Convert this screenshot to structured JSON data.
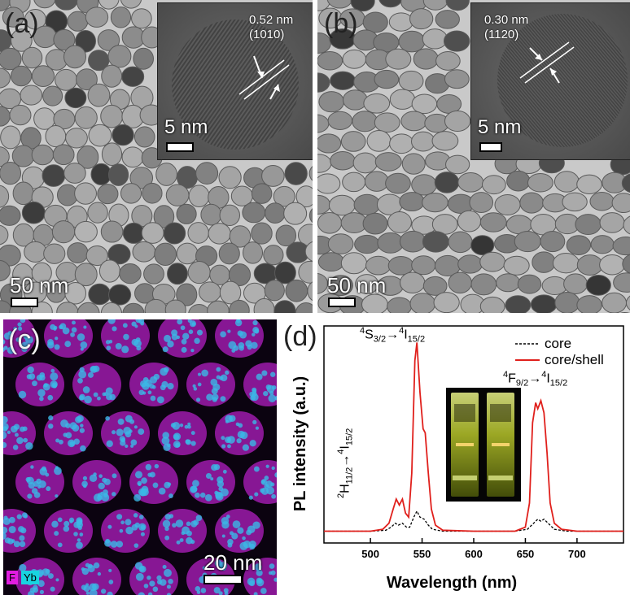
{
  "panels": {
    "a": {
      "label": "(a)",
      "scale": "50 nm",
      "inset": {
        "scale": "5 nm",
        "spacing": "0.52 nm",
        "plane": "(1010)"
      }
    },
    "b": {
      "label": "(b)",
      "scale": "50 nm",
      "inset": {
        "scale": "5 nm",
        "spacing": "0.30 nm",
        "plane": "(1120)"
      }
    },
    "c": {
      "label": "(c)",
      "scale": "20 nm",
      "legend": [
        {
          "label": "F",
          "color": "#e11de0"
        },
        {
          "label": "Yb",
          "color": "#18d4e0"
        }
      ]
    },
    "d": {
      "label": "(d)"
    }
  },
  "chart_data": {
    "type": "line",
    "xlabel": "Wavelength  (nm)",
    "ylabel": "PL intensity  (a.u.)",
    "xlim": [
      455,
      745
    ],
    "xticks": [
      500,
      550,
      600,
      650,
      700
    ],
    "series": [
      {
        "name": "core",
        "style": "dashed",
        "color": "#000000",
        "points": [
          [
            455,
            0.01
          ],
          [
            500,
            0.01
          ],
          [
            515,
            0.015
          ],
          [
            520,
            0.03
          ],
          [
            524,
            0.05
          ],
          [
            527,
            0.04
          ],
          [
            531,
            0.05
          ],
          [
            535,
            0.03
          ],
          [
            538,
            0.03
          ],
          [
            542,
            0.08
          ],
          [
            545,
            0.11
          ],
          [
            548,
            0.08
          ],
          [
            552,
            0.07
          ],
          [
            556,
            0.04
          ],
          [
            560,
            0.02
          ],
          [
            570,
            0.01
          ],
          [
            600,
            0.01
          ],
          [
            640,
            0.01
          ],
          [
            652,
            0.02
          ],
          [
            658,
            0.05
          ],
          [
            662,
            0.07
          ],
          [
            665,
            0.06
          ],
          [
            668,
            0.07
          ],
          [
            672,
            0.05
          ],
          [
            678,
            0.02
          ],
          [
            690,
            0.01
          ],
          [
            745,
            0.01
          ]
        ]
      },
      {
        "name": "core/shell",
        "style": "solid",
        "color": "#e0201c",
        "points": [
          [
            455,
            0.01
          ],
          [
            500,
            0.01
          ],
          [
            512,
            0.02
          ],
          [
            518,
            0.05
          ],
          [
            522,
            0.12
          ],
          [
            525,
            0.17
          ],
          [
            528,
            0.14
          ],
          [
            531,
            0.17
          ],
          [
            534,
            0.1
          ],
          [
            537,
            0.08
          ],
          [
            540,
            0.3
          ],
          [
            543,
            0.86
          ],
          [
            545,
            0.95
          ],
          [
            548,
            0.7
          ],
          [
            551,
            0.52
          ],
          [
            553,
            0.5
          ],
          [
            556,
            0.3
          ],
          [
            559,
            0.12
          ],
          [
            563,
            0.04
          ],
          [
            570,
            0.015
          ],
          [
            600,
            0.01
          ],
          [
            640,
            0.01
          ],
          [
            650,
            0.03
          ],
          [
            654,
            0.15
          ],
          [
            657,
            0.55
          ],
          [
            660,
            0.65
          ],
          [
            662,
            0.62
          ],
          [
            665,
            0.66
          ],
          [
            668,
            0.6
          ],
          [
            671,
            0.4
          ],
          [
            674,
            0.15
          ],
          [
            678,
            0.05
          ],
          [
            685,
            0.02
          ],
          [
            700,
            0.01
          ],
          [
            745,
            0.01
          ]
        ]
      }
    ],
    "annotations": [
      {
        "id": "s32",
        "main": "4S3/2 → 4I15/2"
      },
      {
        "id": "h112",
        "main": "2H11/2 → 4I15/2"
      },
      {
        "id": "f92",
        "main": "4F9/2 → 4I15/2"
      }
    ]
  },
  "labels": {
    "ann_s": {
      "sup1": "4",
      "base1": "S",
      "sub1": "3/2",
      "arrow": "→",
      "sup2": "4",
      "base2": "I",
      "sub2": "15/2"
    },
    "ann_f": {
      "sup1": "4",
      "base1": "F",
      "sub1": "9/2",
      "arrow": "→",
      "sup2": "4",
      "base2": "I",
      "sub2": "15/2"
    },
    "ann_h": {
      "sup1": "2",
      "base1": "H",
      "sub1": "11/2",
      "arrow": "→",
      "sup2": "4",
      "base2": "I",
      "sub2": "15/2"
    }
  }
}
